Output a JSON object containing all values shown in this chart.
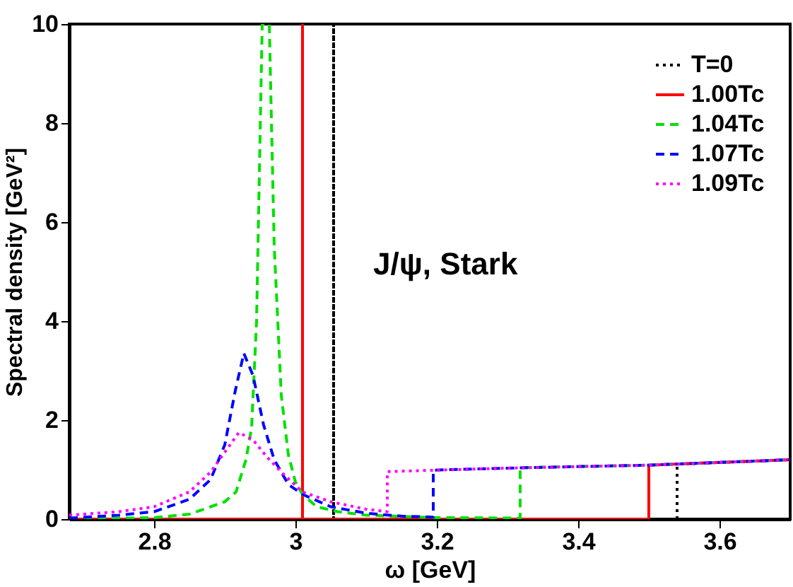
{
  "chart_data": {
    "type": "line",
    "xlabel": "ω [GeV]",
    "ylabel": "Spectral density [GeV²]",
    "xlim": [
      2.68,
      3.7
    ],
    "ylim": [
      0,
      10
    ],
    "xticks": [
      2.8,
      3,
      3.2,
      3.4,
      3.6
    ],
    "yticks": [
      0,
      2,
      4,
      6,
      8,
      10
    ],
    "grid": false,
    "legend": "top right",
    "marker": "none",
    "annotations": [
      "J/ψ, Stark"
    ],
    "series": [
      {
        "name": "T=0",
        "color": "#000000",
        "line_style": "dotted",
        "x": [
          2.68,
          3.054,
          3.054,
          3.054,
          3.54,
          3.54,
          3.7
        ],
        "values": [
          0,
          0,
          10,
          0,
          0,
          1.11,
          1.2
        ]
      },
      {
        "name": "1.00Tc",
        "color": "#ff0000",
        "line_style": "solid",
        "x": [
          2.68,
          3.01,
          3.01,
          3.01,
          3.5,
          3.5,
          3.7
        ],
        "values": [
          0,
          0,
          10,
          0,
          0,
          1.09,
          1.2
        ]
      },
      {
        "name": "1.04Tc",
        "color": "#00e000",
        "line_style": "dashed",
        "x": [
          2.68,
          2.8,
          2.85,
          2.88,
          2.9,
          2.916,
          2.93,
          2.938,
          2.945,
          2.953,
          2.963,
          2.97,
          2.98,
          2.99,
          3.0,
          3.01,
          3.03,
          3.06,
          3.1,
          3.2,
          3.318,
          3.318,
          3.5,
          3.7
        ],
        "values": [
          0,
          0.03,
          0.1,
          0.25,
          0.35,
          0.55,
          1.2,
          1.85,
          4,
          10,
          10,
          5.5,
          2.5,
          1.3,
          0.75,
          0.5,
          0.25,
          0.15,
          0.08,
          0.03,
          0.02,
          1.04,
          1.09,
          1.2
        ]
      },
      {
        "name": "1.07Tc",
        "color": "#0000ff",
        "line_style": "dashed",
        "x": [
          2.68,
          2.75,
          2.8,
          2.85,
          2.88,
          2.9,
          2.915,
          2.927,
          2.94,
          2.955,
          2.97,
          2.99,
          3.01,
          3.05,
          3.1,
          3.15,
          3.195,
          3.195,
          3.3,
          3.5,
          3.7
        ],
        "values": [
          0.02,
          0.08,
          0.15,
          0.4,
          0.8,
          1.5,
          2.6,
          3.35,
          2.9,
          1.9,
          1.2,
          0.7,
          0.5,
          0.25,
          0.12,
          0.06,
          0.04,
          0.99,
          1.03,
          1.09,
          1.2
        ]
      },
      {
        "name": "1.09Tc",
        "color": "#ff00ff",
        "line_style": "dotted",
        "x": [
          2.68,
          2.75,
          2.8,
          2.85,
          2.88,
          2.9,
          2.92,
          2.94,
          2.96,
          2.98,
          3.01,
          3.05,
          3.1,
          3.13,
          3.13,
          3.3,
          3.5,
          3.7
        ],
        "values": [
          0.08,
          0.15,
          0.25,
          0.55,
          0.95,
          1.35,
          1.75,
          1.6,
          1.25,
          0.95,
          0.55,
          0.35,
          0.2,
          0.15,
          0.96,
          1.03,
          1.09,
          1.2
        ]
      }
    ]
  }
}
